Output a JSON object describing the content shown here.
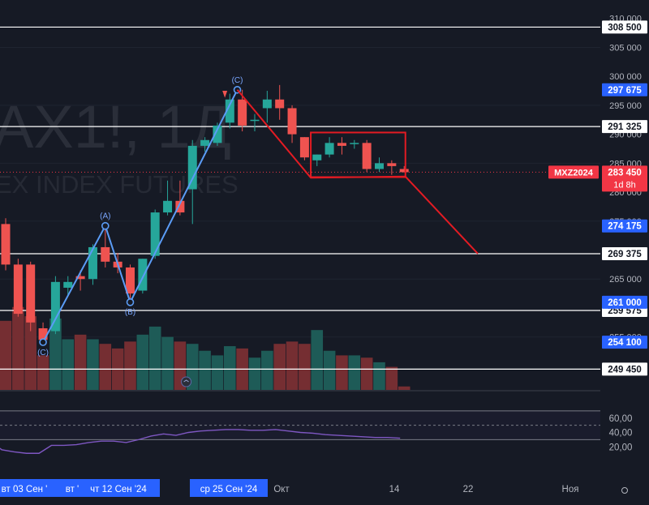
{
  "watermark": {
    "symbol": "AX1!, 1Д",
    "description": "EX INDEX FUTURES"
  },
  "price_axis": {
    "ticks": [
      "310 000",
      "305 000",
      "300 000",
      "295 000",
      "290 000",
      "285 000",
      "280 000",
      "275 000",
      "265 000",
      "255 000"
    ],
    "levels": [
      "308 500",
      "291 325",
      "269 375",
      "259 575",
      "249 450"
    ],
    "badges": [
      "297 675",
      "274 175",
      "261 000",
      "254 100"
    ],
    "current_symbol": "MXZ2024",
    "current_price": "283 450",
    "countdown": "1d 8h"
  },
  "rsi_axis": {
    "ticks": [
      "60,00",
      "40,00",
      "20,00"
    ]
  },
  "time_axis": {
    "labels": [
      "вт 03 Сен '",
      "вт '",
      "чт 12 Сен '24",
      "ср 25 Сен '24",
      "Окт",
      "14",
      "22",
      "Ноя"
    ]
  },
  "wave_labels": [
    "(C)",
    "(A)",
    "(B)",
    "(C)"
  ],
  "colors": {
    "background": "#161a25",
    "up": "#26a69a",
    "down": "#ef5350",
    "wave_line": "#5b9cf6",
    "projection": "#e31b23",
    "rsi": "#7e57c2",
    "badge_blue": "#2962ff",
    "badge_red": "#f23645"
  },
  "chart_data": {
    "type": "candlestick",
    "candles": [
      {
        "o": 274500,
        "h": 275500,
        "l": 266500,
        "c": 267500
      },
      {
        "o": 267500,
        "h": 268500,
        "l": 258500,
        "c": 259000
      },
      {
        "o": 267500,
        "h": 268000,
        "l": 256000,
        "c": 257500
      },
      {
        "o": 256500,
        "h": 257500,
        "l": 254100,
        "c": 254500
      },
      {
        "o": 256000,
        "h": 265500,
        "l": 255500,
        "c": 264500
      },
      {
        "o": 263500,
        "h": 265500,
        "l": 262000,
        "c": 264500
      },
      {
        "o": 265500,
        "h": 266500,
        "l": 263000,
        "c": 265000
      },
      {
        "o": 265000,
        "h": 271000,
        "l": 264000,
        "c": 270500
      },
      {
        "o": 270500,
        "h": 274175,
        "l": 267000,
        "c": 268000
      },
      {
        "o": 268000,
        "h": 269500,
        "l": 266000,
        "c": 267000
      },
      {
        "o": 267000,
        "h": 267500,
        "l": 261000,
        "c": 262500
      },
      {
        "o": 263000,
        "h": 268500,
        "l": 262500,
        "c": 268500
      },
      {
        "o": 269000,
        "h": 277000,
        "l": 268500,
        "c": 276500
      },
      {
        "o": 276500,
        "h": 282000,
        "l": 276000,
        "c": 278500
      },
      {
        "o": 278500,
        "h": 282000,
        "l": 276000,
        "c": 276500
      },
      {
        "o": 280500,
        "h": 289000,
        "l": 274500,
        "c": 288000
      },
      {
        "o": 288000,
        "h": 289500,
        "l": 287000,
        "c": 289000
      },
      {
        "o": 288500,
        "h": 292000,
        "l": 288000,
        "c": 291500
      },
      {
        "o": 292000,
        "h": 297000,
        "l": 291000,
        "c": 296000
      },
      {
        "o": 296000,
        "h": 297675,
        "l": 290500,
        "c": 291500
      },
      {
        "o": 292500,
        "h": 293500,
        "l": 290500,
        "c": 292500
      },
      {
        "o": 294500,
        "h": 297500,
        "l": 292000,
        "c": 296000
      },
      {
        "o": 296000,
        "h": 298500,
        "l": 292500,
        "c": 294500
      },
      {
        "o": 294500,
        "h": 295000,
        "l": 288500,
        "c": 290000
      },
      {
        "o": 289500,
        "h": 289500,
        "l": 285500,
        "c": 286000
      },
      {
        "o": 285500,
        "h": 286500,
        "l": 284500,
        "c": 286500
      },
      {
        "o": 286500,
        "h": 289500,
        "l": 286000,
        "c": 288500
      },
      {
        "o": 288500,
        "h": 289500,
        "l": 286500,
        "c": 288000
      },
      {
        "o": 288500,
        "h": 289000,
        "l": 287500,
        "c": 288500
      },
      {
        "o": 288500,
        "h": 289000,
        "l": 283500,
        "c": 284000
      },
      {
        "o": 284000,
        "h": 286000,
        "l": 283500,
        "c": 285000
      },
      {
        "o": 285000,
        "h": 285500,
        "l": 283000,
        "c": 284500
      },
      {
        "o": 284000,
        "h": 284500,
        "l": 283400,
        "c": 283450
      }
    ],
    "volume": [
      60,
      72,
      64,
      30,
      62,
      44,
      48,
      44,
      40,
      36,
      42,
      48,
      55,
      46,
      42,
      40,
      34,
      30,
      38,
      36,
      28,
      34,
      40,
      42,
      40,
      52,
      34,
      30,
      30,
      28,
      24,
      20,
      3
    ],
    "rsi": [
      16,
      13,
      11,
      11,
      22,
      22,
      23,
      26,
      28,
      28,
      26,
      30,
      35,
      38,
      36,
      40,
      42,
      43,
      44,
      44,
      43,
      43,
      44,
      42,
      40,
      39,
      37,
      36,
      35,
      34,
      33,
      33,
      32
    ],
    "rsi_range": [
      0,
      80
    ],
    "price_range": [
      246000,
      311500
    ]
  }
}
